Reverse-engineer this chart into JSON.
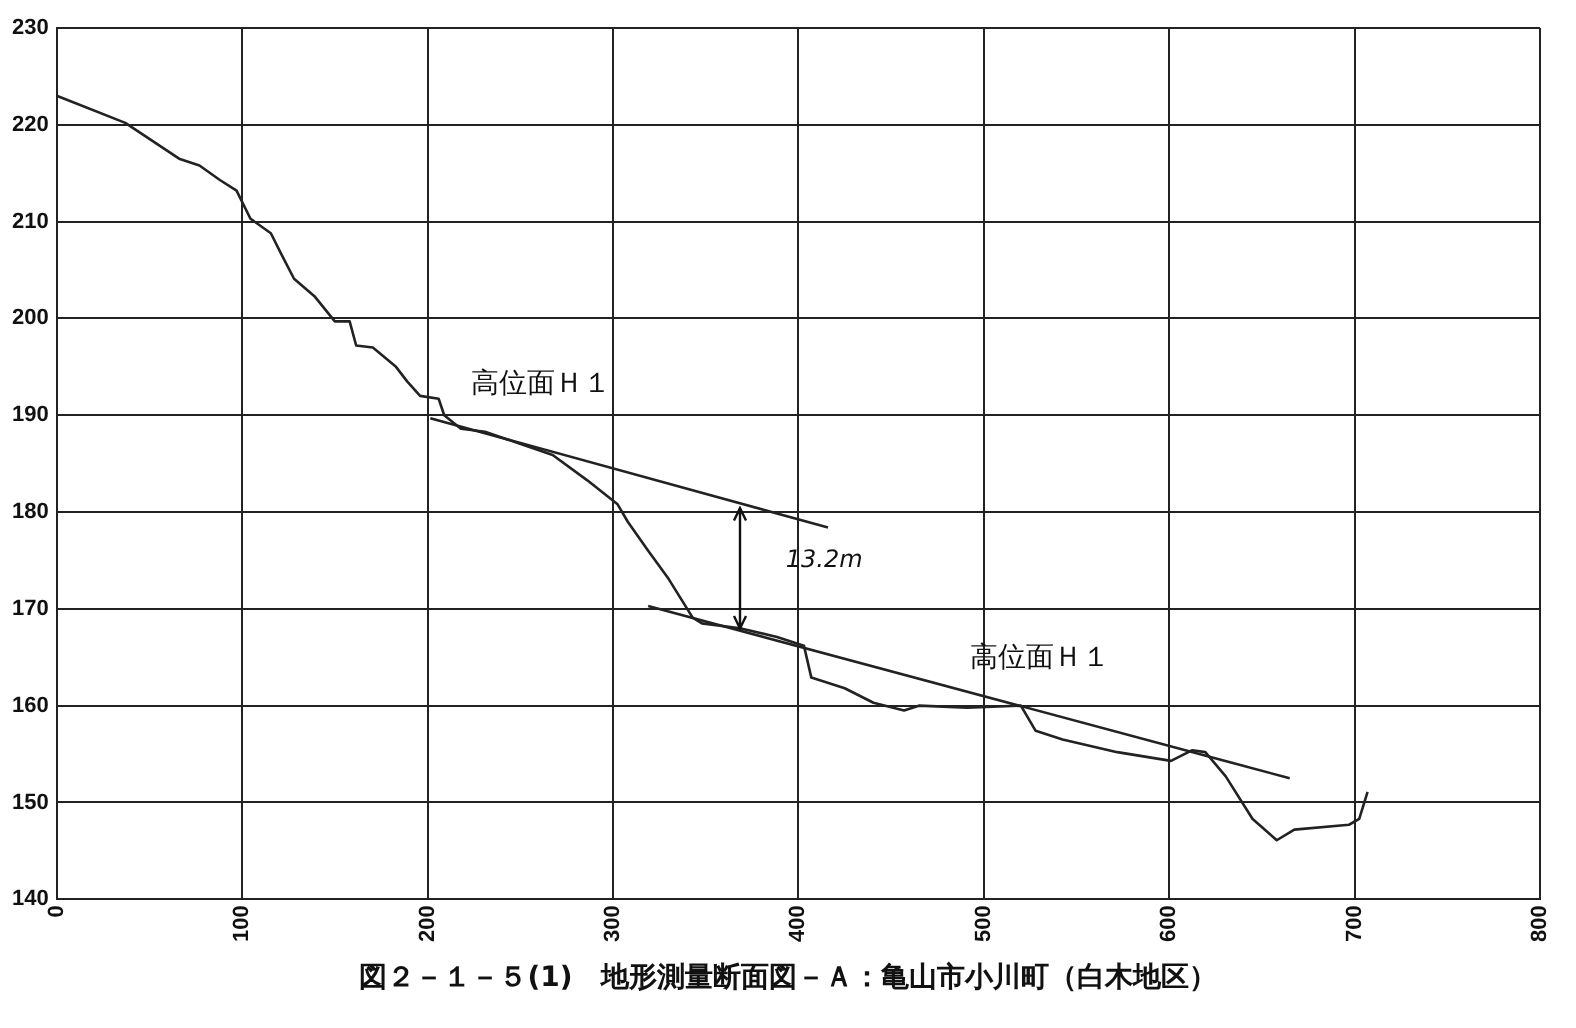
{
  "chart_data": {
    "type": "line",
    "title": "図２－１－５(1)　地形測量断面図－Ａ：亀山市小川町（白木地区）",
    "xlim": [
      0,
      800
    ],
    "xticks": [
      0,
      100,
      200,
      300,
      400,
      500,
      600,
      700,
      800
    ],
    "ylim": [
      140,
      230
    ],
    "yticks": [
      140,
      150,
      160,
      170,
      180,
      190,
      200,
      210,
      220,
      230
    ],
    "grid": true,
    "legend": false,
    "marker": "none",
    "line_style": "solid",
    "series": [
      {
        "color": "#222222",
        "x": [
          0,
          37,
          66,
          77,
          88,
          97,
          104.5,
          115.5,
          121,
          128,
          139,
          150,
          158,
          161.5,
          170.5,
          183,
          189,
          196,
          206,
          209,
          218,
          231,
          267.5,
          286,
          302.5,
          308,
          319,
          330,
          343,
          348,
          368.5,
          388.5,
          403,
          407,
          425,
          440.5,
          457,
          465,
          491,
          520,
          528,
          542.5,
          572,
          601,
          612.5,
          619.5,
          630.5,
          645,
          658,
          667.5,
          697,
          702.5,
          707
        ],
        "values": [
          223,
          220.2,
          216.5,
          215.8,
          214.3,
          213.2,
          210.3,
          208.8,
          206.7,
          204.1,
          202.3,
          199.7,
          199.7,
          197.2,
          197,
          195,
          193.5,
          192,
          191.7,
          190,
          188.6,
          188.3,
          185.9,
          183.3,
          180.8,
          179,
          176,
          173.1,
          169.1,
          168.5,
          168,
          167.1,
          166.2,
          162.9,
          161.8,
          160.3,
          159.5,
          160,
          159.8,
          160,
          157.4,
          156.5,
          155.2,
          154.3,
          155.4,
          155.2,
          152.7,
          148.3,
          146.1,
          147.2,
          147.7,
          148.3,
          151.1
        ]
      },
      {
        "type": "line",
        "color": "#222222",
        "x": [
          201.5,
          416
        ],
        "values": [
          189.7,
          178.4
        ]
      },
      {
        "type": "line",
        "color": "#222222",
        "x": [
          319,
          665
        ],
        "values": [
          170.3,
          152.5
        ]
      }
    ],
    "annotations": [
      "高位面Ｈ１",
      "高位面Ｈ１",
      "13.2m"
    ]
  }
}
